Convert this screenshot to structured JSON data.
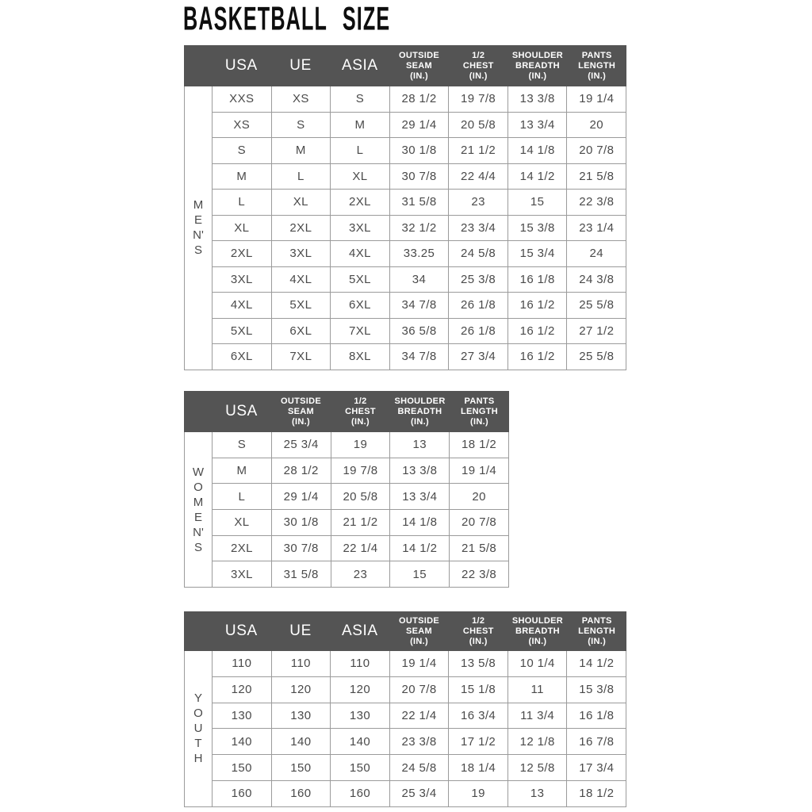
{
  "title": "BASKETBALL SIZE",
  "colors": {
    "header_bg": "#545454",
    "header_text": "#ffffff",
    "body_text": "#4a4a4a",
    "border": "#9b9b9b",
    "title_text": "#0e0e0e",
    "background": "#ffffff"
  },
  "tables": [
    {
      "group_label": "MEN'S",
      "group_vertical": "M\nE\nN'\nS",
      "columns": [
        "USA",
        "UE",
        "ASIA",
        "OUTSIDE\nSEAM\n(IN.)",
        "1/2\nCHEST\n(IN.)",
        "SHOULDER\nBREADTH\n(IN.)",
        "PANTS\nLENGTH\n(IN.)"
      ],
      "rows": [
        [
          "XXS",
          "XS",
          "S",
          "28 1/2",
          "19 7/8",
          "13 3/8",
          "19 1/4"
        ],
        [
          "XS",
          "S",
          "M",
          "29 1/4",
          "20 5/8",
          "13 3/4",
          "20"
        ],
        [
          "S",
          "M",
          "L",
          "30 1/8",
          "21 1/2",
          "14 1/8",
          "20 7/8"
        ],
        [
          "M",
          "L",
          "XL",
          "30 7/8",
          "22 4/4",
          "14 1/2",
          "21 5/8"
        ],
        [
          "L",
          "XL",
          "2XL",
          "31 5/8",
          "23",
          "15",
          "22 3/8"
        ],
        [
          "XL",
          "2XL",
          "3XL",
          "32 1/2",
          "23 3/4",
          "15 3/8",
          "23 1/4"
        ],
        [
          "2XL",
          "3XL",
          "4XL",
          "33.25",
          "24 5/8",
          "15 3/4",
          "24"
        ],
        [
          "3XL",
          "4XL",
          "5XL",
          "34",
          "25 3/8",
          "16 1/8",
          "24 3/8"
        ],
        [
          "4XL",
          "5XL",
          "6XL",
          "34 7/8",
          "26 1/8",
          "16 1/2",
          "25 5/8"
        ],
        [
          "5XL",
          "6XL",
          "7XL",
          "36 5/8",
          "26 1/8",
          "16 1/2",
          "27 1/2"
        ],
        [
          "6XL",
          "7XL",
          "8XL",
          "34 7/8",
          "27 3/4",
          "16 1/2",
          "25 5/8"
        ]
      ]
    },
    {
      "group_label": "WOMEN'S",
      "group_vertical": "W\nO\nM\nE\nN'\nS",
      "columns": [
        "USA",
        "OUTSIDE\nSEAM\n(IN.)",
        "1/2\nCHEST\n(IN.)",
        "SHOULDER\nBREADTH\n(IN.)",
        "PANTS\nLENGTH\n(IN.)"
      ],
      "rows": [
        [
          "S",
          "25 3/4",
          "19",
          "13",
          "18 1/2"
        ],
        [
          "M",
          "28 1/2",
          "19 7/8",
          "13 3/8",
          "19 1/4"
        ],
        [
          "L",
          "29 1/4",
          "20 5/8",
          "13 3/4",
          "20"
        ],
        [
          "XL",
          "30 1/8",
          "21 1/2",
          "14 1/8",
          "20 7/8"
        ],
        [
          "2XL",
          "30 7/8",
          "22 1/4",
          "14 1/2",
          "21 5/8"
        ],
        [
          "3XL",
          "31 5/8",
          "23",
          "15",
          "22 3/8"
        ]
      ]
    },
    {
      "group_label": "YOUTH",
      "group_vertical": "Y\nO\nU\nT\nH",
      "columns": [
        "USA",
        "UE",
        "ASIA",
        "OUTSIDE\nSEAM\n(IN.)",
        "1/2\nCHEST\n(IN.)",
        "SHOULDER\nBREADTH\n(IN.)",
        "PANTS\nLENGTH\n(IN.)"
      ],
      "rows": [
        [
          "110",
          "110",
          "110",
          "19 1/4",
          "13 5/8",
          "10 1/4",
          "14 1/2"
        ],
        [
          "120",
          "120",
          "120",
          "20 7/8",
          "15 1/8",
          "11",
          "15 3/8"
        ],
        [
          "130",
          "130",
          "130",
          "22 1/4",
          "16 3/4",
          "11 3/4",
          "16 1/8"
        ],
        [
          "140",
          "140",
          "140",
          "23 3/8",
          "17 1/2",
          "12 1/8",
          "16 7/8"
        ],
        [
          "150",
          "150",
          "150",
          "24 5/8",
          "18 1/4",
          "12 5/8",
          "17 3/4"
        ],
        [
          "160",
          "160",
          "160",
          "25 3/4",
          "19",
          "13",
          "18 1/2"
        ]
      ]
    }
  ]
}
